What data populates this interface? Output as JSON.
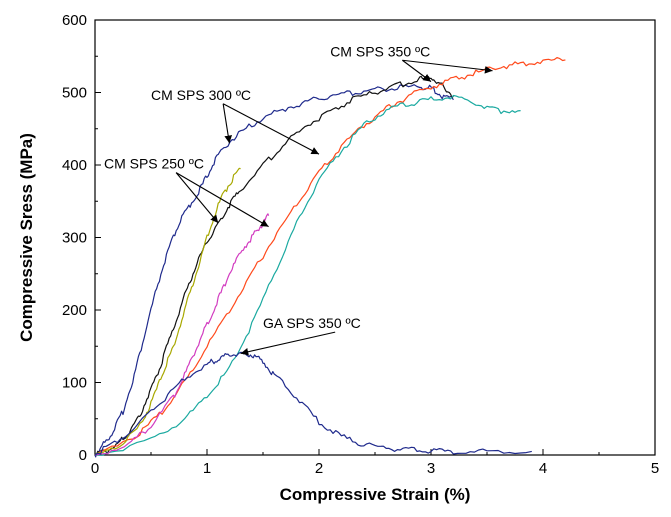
{
  "chart_data": {
    "type": "line",
    "xlabel": "Compressive Strain (%)",
    "ylabel": "Compressive Sress (MPa)",
    "xlim": [
      0,
      5
    ],
    "ylim": [
      0,
      600
    ],
    "xticks": [
      "0",
      "1",
      "2",
      "3",
      "4",
      "5"
    ],
    "yticks": [
      "0",
      "100",
      "200",
      "300",
      "400",
      "500",
      "600"
    ],
    "grid": false,
    "colors": {
      "navy": "#1f2a8c",
      "black": "#111111",
      "orange": "#ff4a1c",
      "teal": "#1aa9a0",
      "olive": "#a8a800",
      "magenta": "#d23cc0"
    },
    "series": [
      {
        "color": "navy",
        "x": [
          0,
          0.05,
          0.15,
          0.25,
          0.35,
          0.45,
          0.55,
          0.65,
          0.75,
          0.85,
          0.95,
          1.05,
          1.15,
          1.3,
          1.5,
          1.7,
          1.9,
          2.1,
          2.3,
          2.5,
          2.7,
          2.9,
          3.0,
          3.1,
          3.2
        ],
        "y": [
          0,
          10,
          30,
          60,
          110,
          170,
          230,
          280,
          320,
          345,
          370,
          400,
          425,
          445,
          465,
          478,
          488,
          495,
          500,
          504,
          507,
          508,
          506,
          495,
          490
        ]
      },
      {
        "color": "black",
        "x": [
          0,
          0.1,
          0.2,
          0.3,
          0.4,
          0.5,
          0.6,
          0.7,
          0.8,
          0.9,
          1.0,
          1.1,
          1.2,
          1.3,
          1.5,
          1.7,
          1.9,
          2.1,
          2.3,
          2.5,
          2.7,
          2.9,
          3.0,
          3.1,
          3.2
        ],
        "y": [
          0,
          5,
          15,
          30,
          55,
          90,
          130,
          175,
          220,
          260,
          295,
          320,
          345,
          365,
          400,
          430,
          455,
          475,
          490,
          500,
          510,
          518,
          520,
          510,
          495
        ]
      },
      {
        "color": "orange",
        "x": [
          0,
          0.4,
          0.6,
          0.8,
          1.0,
          1.2,
          1.4,
          1.6,
          1.8,
          2.0,
          2.2,
          2.4,
          2.6,
          2.8,
          3.0,
          3.2,
          3.4,
          3.6,
          3.8,
          4.0,
          4.2
        ],
        "y": [
          0,
          30,
          60,
          100,
          150,
          200,
          250,
          300,
          345,
          390,
          425,
          455,
          478,
          495,
          508,
          518,
          527,
          535,
          540,
          543,
          545
        ]
      },
      {
        "color": "teal",
        "x": [
          0,
          0.5,
          0.8,
          1.0,
          1.2,
          1.4,
          1.6,
          1.8,
          2.0,
          2.2,
          2.4,
          2.6,
          2.8,
          3.0,
          3.2,
          3.4,
          3.6,
          3.8
        ],
        "y": [
          0,
          20,
          50,
          80,
          120,
          180,
          250,
          320,
          380,
          420,
          455,
          475,
          485,
          490,
          495,
          485,
          475,
          475
        ]
      },
      {
        "color": "olive",
        "x": [
          0,
          0.2,
          0.4,
          0.5,
          0.6,
          0.7,
          0.8,
          0.9,
          1.0,
          1.1,
          1.2,
          1.3
        ],
        "y": [
          0,
          10,
          40,
          70,
          110,
          150,
          200,
          250,
          300,
          345,
          375,
          395
        ]
      },
      {
        "color": "magenta",
        "x": [
          0,
          0.3,
          0.5,
          0.7,
          0.8,
          0.9,
          1.0,
          1.1,
          1.2,
          1.3,
          1.4,
          1.5,
          1.55
        ],
        "y": [
          0,
          15,
          40,
          80,
          110,
          145,
          180,
          215,
          250,
          280,
          300,
          320,
          330
        ]
      },
      {
        "color": "navy",
        "x": [
          0,
          0.2,
          0.4,
          0.6,
          0.8,
          1.0,
          1.1,
          1.2,
          1.3,
          1.4,
          1.5,
          1.6,
          1.8,
          2.0,
          2.2,
          2.4,
          2.6,
          2.8,
          3.0,
          3.2,
          3.5,
          3.9
        ],
        "y": [
          0,
          20,
          45,
          75,
          105,
          125,
          133,
          138,
          140,
          138,
          130,
          110,
          80,
          45,
          25,
          15,
          10,
          7,
          6,
          5,
          5,
          5
        ]
      }
    ],
    "annotations": [
      {
        "text": "CM SPS 350 ºC",
        "x": 2.1,
        "y": 550,
        "arrows": [
          [
            3.0,
            515
          ],
          [
            3.55,
            530
          ]
        ]
      },
      {
        "text": "CM SPS 300 ºC",
        "x": 0.5,
        "y": 490,
        "arrows": [
          [
            1.2,
            430
          ],
          [
            2.0,
            415
          ]
        ]
      },
      {
        "text": "CM SPS 250 ºC",
        "x": 0.08,
        "y": 395,
        "arrows": [
          [
            1.1,
            320
          ],
          [
            1.55,
            315
          ]
        ]
      },
      {
        "text": "GA SPS 350 ºC",
        "x": 1.5,
        "y": 175,
        "arrows": [
          [
            1.3,
            140
          ]
        ]
      }
    ]
  }
}
